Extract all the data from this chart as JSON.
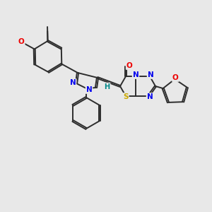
{
  "bg_color": "#e8e8e8",
  "bond_color": "#2d2d2d",
  "atom_colors": {
    "N": "#0000ee",
    "O": "#ee0000",
    "S": "#ccaa00",
    "H": "#008888",
    "C": "#2d2d2d"
  },
  "figsize": [
    3.0,
    3.0
  ],
  "dpi": 100
}
